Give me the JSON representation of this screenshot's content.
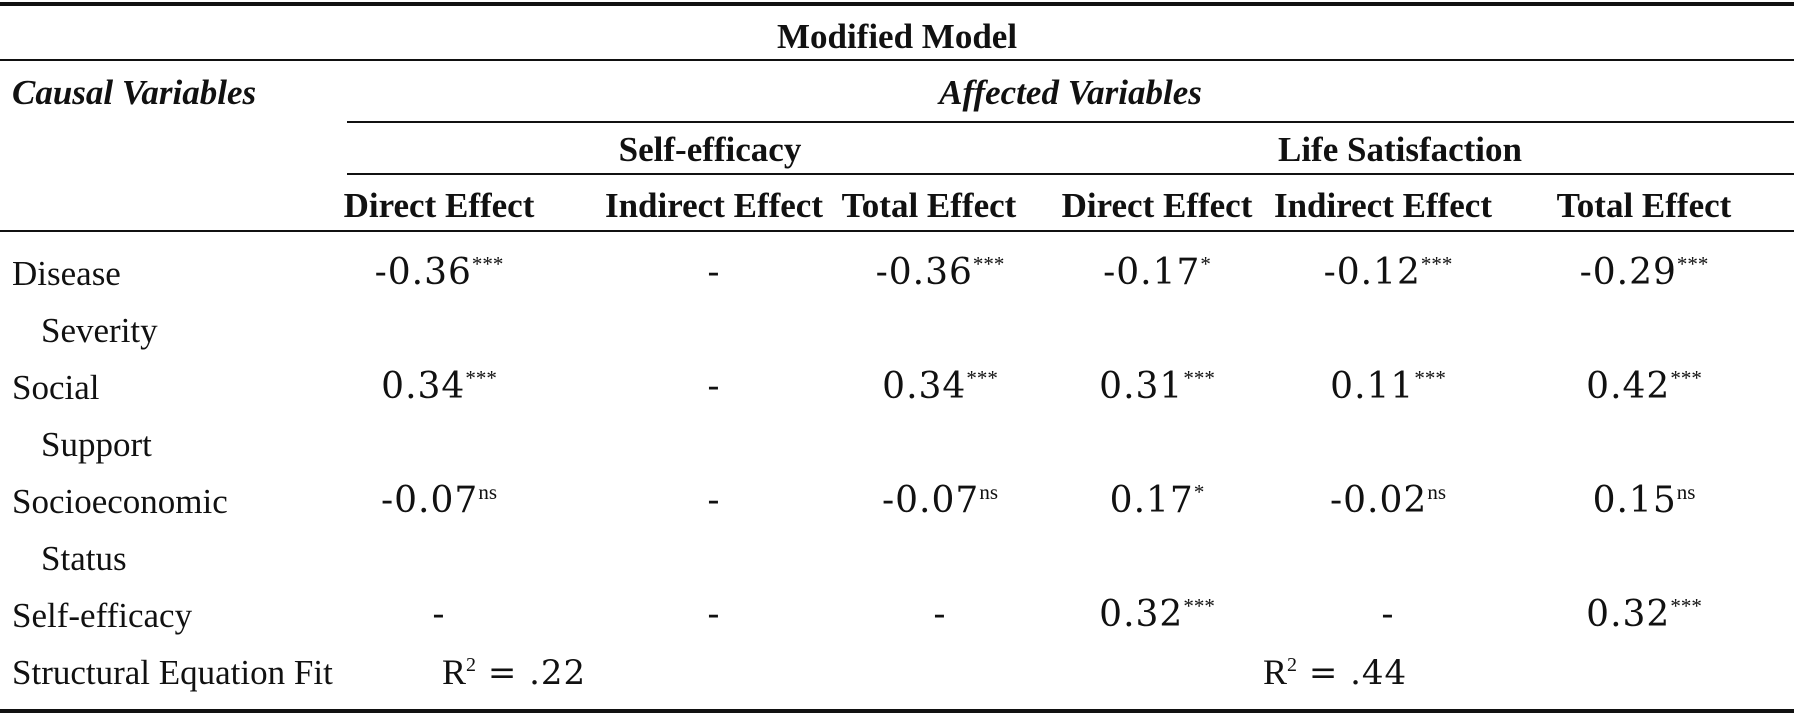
{
  "table": {
    "title": "Modified Model",
    "causal_header": "Causal Variables",
    "affected_header": "Affected Variables",
    "groups": [
      "Self-efficacy",
      "Life Satisfaction"
    ],
    "columns": [
      "Direct Effect",
      "Indirect Effect",
      "Total Effect",
      "Direct Effect",
      "Indirect Effect",
      "Total Effect"
    ],
    "rows": [
      {
        "label_line1": "Disease",
        "label_line2": "Severity",
        "cells": [
          {
            "v": "-0.36",
            "s": "***"
          },
          {
            "v": "-",
            "s": ""
          },
          {
            "v": "-0.36",
            "s": "***"
          },
          {
            "v": "-0.17",
            "s": "*"
          },
          {
            "v": "-0.12",
            "s": "***"
          },
          {
            "v": "-0.29",
            "s": "***"
          }
        ]
      },
      {
        "label_line1": "Social",
        "label_line2": "Support",
        "cells": [
          {
            "v": "0.34",
            "s": "***"
          },
          {
            "v": "-",
            "s": ""
          },
          {
            "v": "0.34",
            "s": "***"
          },
          {
            "v": "0.31",
            "s": "***"
          },
          {
            "v": "0.11",
            "s": "***"
          },
          {
            "v": "0.42",
            "s": "***"
          }
        ]
      },
      {
        "label_line1": "Socioeconomic",
        "label_line2": "Status",
        "cells": [
          {
            "v": "-0.07",
            "s": "ns"
          },
          {
            "v": "-",
            "s": ""
          },
          {
            "v": "-0.07",
            "s": "ns"
          },
          {
            "v": "0.17",
            "s": "*"
          },
          {
            "v": "-0.02",
            "s": "ns"
          },
          {
            "v": "0.15",
            "s": "ns"
          }
        ]
      },
      {
        "label_line1": "Self-efficacy",
        "label_line2": "",
        "cells": [
          {
            "v": "-",
            "s": ""
          },
          {
            "v": "-",
            "s": ""
          },
          {
            "v": "-",
            "s": ""
          },
          {
            "v": "0.32",
            "s": "***"
          },
          {
            "v": "-",
            "s": ""
          },
          {
            "v": "0.32",
            "s": "***"
          }
        ]
      }
    ],
    "fit_label": "Structural Equation Fit",
    "fit_self_efficacy": {
      "prefix": "R",
      "exp": "2",
      "value": " = .22"
    },
    "fit_life_satisfaction": {
      "prefix": "R",
      "exp": "2",
      "value": " = .44"
    }
  }
}
